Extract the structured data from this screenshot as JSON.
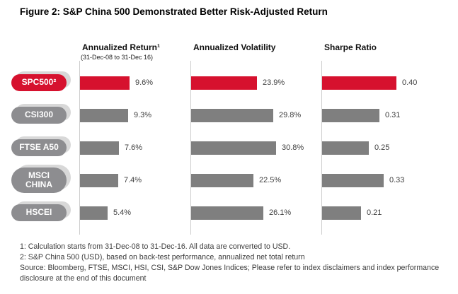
{
  "title": "Figure 2: S&P China 500 Demonstrated Better Risk-Adjusted Return",
  "chart_data": {
    "type": "bar",
    "orientation": "horizontal",
    "grid": "off",
    "legend": "none",
    "categories": [
      "SPC500²",
      "CSI300",
      "FTSE A50",
      "MSCI CHINA",
      "HSCEI"
    ],
    "highlight_category": "SPC500²",
    "columns": [
      {
        "title": "Annualized Return¹",
        "subtitle": "(31-Dec-08 to 31-Dec 16)",
        "unit": "%",
        "values": [
          9.6,
          9.3,
          7.6,
          7.4,
          5.4
        ],
        "labels": [
          "9.6%",
          "9.3%",
          "7.6%",
          "7.4%",
          "5.4%"
        ],
        "xmax": 12
      },
      {
        "title": "Annualized Volatility",
        "subtitle": "",
        "unit": "%",
        "values": [
          23.9,
          29.8,
          30.8,
          22.5,
          26.1
        ],
        "labels": [
          "23.9%",
          "29.8%",
          "30.8%",
          "22.5%",
          "26.1%"
        ],
        "xmax": 36
      },
      {
        "title": "Sharpe Ratio",
        "subtitle": "",
        "unit": "",
        "values": [
          0.4,
          0.31,
          0.25,
          0.33,
          0.21
        ],
        "labels": [
          "0.40",
          "0.31",
          "0.25",
          "0.33",
          "0.21"
        ],
        "xmax": 0.55
      }
    ],
    "colors": {
      "highlight": "#d6112e",
      "bar": "#7f7f7f",
      "pill": "#8d8d90",
      "pill_shadow": "#d8d8d8",
      "axis": "#cccccc"
    }
  },
  "footnotes": [
    "1: Calculation starts from 31-Dec-08 to 31-Dec-16. All data are converted to USD.",
    "2: S&P China 500 (USD), based on back-test performance, annualized net total return",
    "Source: Bloomberg, FTSE, MSCI, HSI, CSI, S&P Dow Jones Indices; Please refer to index disclaimers and index performance disclosure at the end of this document"
  ]
}
